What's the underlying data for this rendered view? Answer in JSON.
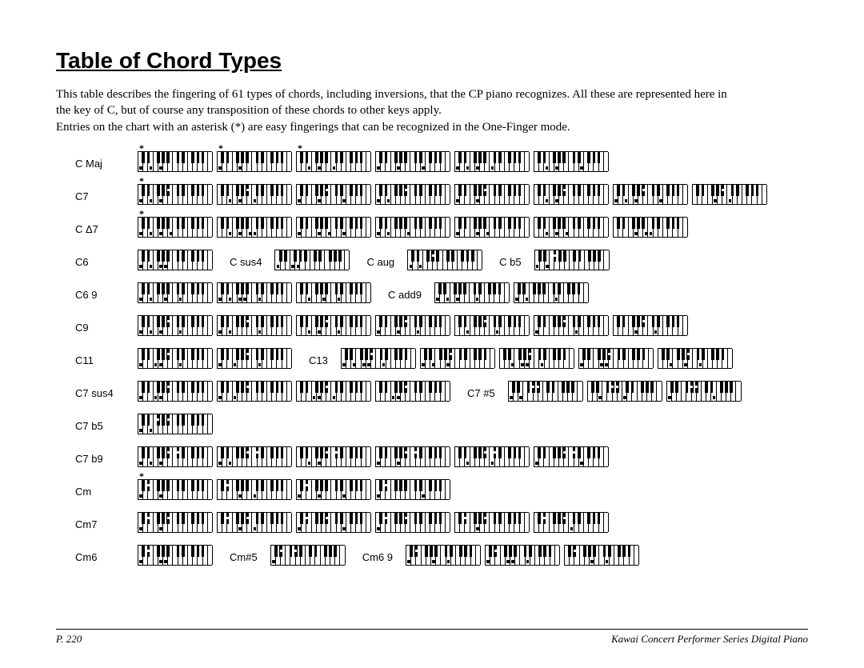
{
  "title": "Table of Chord Types",
  "intro_p1": "This table describes the fingering of 61 types of chords, including inversions, that the CP piano recognizes. All these are represented here in the key of C, but of course any transposition of these chords to other keys apply.",
  "intro_p2": "Entries on the chart with an asterisk (*) are easy fingerings that can be recognized in the One-Finger mode.",
  "footer_page": "P. 220",
  "footer_product": "Kawai Concert Performer Series Digital Piano",
  "keyboard": {
    "white_key_width": 6.2,
    "black_key_width": 3.8,
    "white_keys_per_octave": 7,
    "octaves": 2,
    "extra_white_key": true,
    "colors": {
      "white": "#ffffff",
      "black": "#000000",
      "border": "#000000"
    }
  },
  "rows": [
    {
      "items": [
        {
          "label": "C Maj",
          "first": true
        },
        {
          "kb": {
            "ast": true,
            "w": [
              0,
              2,
              4
            ]
          }
        },
        {
          "kb": {
            "ast": true,
            "w": [
              0,
              4
            ],
            "b": []
          }
        },
        {
          "kb": {
            "ast": true,
            "w": [
              2,
              4,
              7
            ]
          }
        },
        {
          "kb": {
            "w": [
              0,
              4,
              9
            ]
          }
        },
        {
          "kb": {
            "w": [
              0,
              2,
              4,
              7
            ]
          }
        },
        {
          "kb": {
            "w": [
              2,
              4,
              9
            ]
          }
        }
      ]
    },
    {
      "items": [
        {
          "label": "C7",
          "first": true
        },
        {
          "kb": {
            "ast": true,
            "w": [
              0,
              2,
              4
            ],
            "b": [
              10
            ]
          }
        },
        {
          "kb": {
            "w": [
              2,
              4,
              7
            ],
            "b": [
              10
            ]
          }
        },
        {
          "kb": {
            "w": [
              0,
              4,
              9
            ],
            "b": [
              10
            ]
          }
        },
        {
          "kb": {
            "w": [
              0,
              2
            ],
            "b": [
              10
            ]
          }
        },
        {
          "kb": {
            "w": [
              0,
              4
            ],
            "b": [
              10
            ]
          }
        },
        {
          "kb": {
            "w": [
              2,
              4
            ],
            "b": [
              10
            ]
          }
        },
        {
          "kb": {
            "w": [
              0,
              2,
              4,
              9
            ],
            "b": [
              10
            ]
          }
        },
        {
          "kb": {
            "w": [
              4,
              7
            ],
            "b": [
              10
            ]
          }
        }
      ]
    },
    {
      "items": [
        {
          "label": "C Δ7",
          "first": true
        },
        {
          "kb": {
            "ast": true,
            "w": [
              0,
              2,
              4,
              6
            ]
          }
        },
        {
          "kb": {
            "w": [
              2,
              4,
              6,
              7
            ]
          }
        },
        {
          "kb": {
            "w": [
              0,
              4,
              6,
              9
            ]
          }
        },
        {
          "kb": {
            "w": [
              0,
              2,
              6
            ]
          }
        },
        {
          "kb": {
            "w": [
              0,
              4,
              6
            ]
          }
        },
        {
          "kb": {
            "w": [
              2,
              4,
              6
            ]
          }
        },
        {
          "kb": {
            "w": [
              4,
              6,
              7
            ]
          }
        }
      ]
    },
    {
      "items": [
        {
          "label": "C6",
          "first": true
        },
        {
          "kb": {
            "w": [
              0,
              2,
              4,
              5
            ]
          }
        },
        {
          "label": "C sus4",
          "inline": true
        },
        {
          "kb": {
            "w": [
              0,
              3,
              4
            ]
          }
        },
        {
          "label": "C aug",
          "inline": true
        },
        {
          "kb": {
            "w": [
              0,
              2
            ],
            "b": [
              8
            ]
          }
        },
        {
          "label": "C b5",
          "inline": true
        },
        {
          "kb": {
            "w": [
              0,
              2
            ],
            "b": [
              6
            ]
          }
        }
      ]
    },
    {
      "items": [
        {
          "label": "C6 9",
          "first": true
        },
        {
          "kb": {
            "w": [
              0,
              2,
              5,
              8
            ]
          }
        },
        {
          "kb": {
            "w": [
              0,
              2,
              4,
              5,
              8
            ]
          }
        },
        {
          "kb": {
            "w": [
              2,
              5,
              8
            ]
          }
        },
        {
          "label": "C add9",
          "inline": true
        },
        {
          "kb": {
            "w": [
              0,
              2,
              4,
              8
            ]
          }
        },
        {
          "kb": {
            "w": [
              0,
              2,
              8
            ]
          }
        }
      ]
    },
    {
      "items": [
        {
          "label": "C9",
          "first": true
        },
        {
          "kb": {
            "w": [
              0,
              2,
              4,
              8
            ],
            "b": [
              10
            ]
          }
        },
        {
          "kb": {
            "w": [
              0,
              2,
              8
            ],
            "b": [
              10
            ]
          }
        },
        {
          "kb": {
            "w": [
              2,
              4,
              8
            ],
            "b": [
              10
            ]
          }
        },
        {
          "kb": {
            "w": [
              0,
              4,
              8
            ],
            "b": [
              10
            ]
          }
        },
        {
          "kb": {
            "w": [
              2,
              8
            ],
            "b": [
              10
            ]
          }
        },
        {
          "kb": {
            "w": [
              0,
              8
            ],
            "b": [
              10
            ]
          }
        },
        {
          "kb": {
            "w": [
              4,
              8
            ],
            "b": [
              10
            ]
          }
        }
      ]
    },
    {
      "items": [
        {
          "label": "C11",
          "first": true
        },
        {
          "kb": {
            "w": [
              0,
              3,
              4,
              8
            ],
            "b": [
              10
            ]
          }
        },
        {
          "kb": {
            "w": [
              0,
              3,
              8
            ],
            "b": [
              10
            ]
          }
        },
        {
          "label": "C13",
          "inline": true
        },
        {
          "kb": {
            "w": [
              0,
              2,
              4,
              5,
              8
            ],
            "b": [
              10
            ]
          }
        },
        {
          "kb": {
            "w": [
              0,
              2,
              5
            ],
            "b": [
              10
            ]
          }
        },
        {
          "kb": {
            "w": [
              2,
              4,
              5,
              8
            ],
            "b": [
              10
            ]
          }
        },
        {
          "kb": {
            "w": [
              0,
              4,
              5
            ],
            "b": [
              10
            ]
          }
        },
        {
          "kb": {
            "w": [
              2,
              5,
              8
            ],
            "b": [
              10
            ]
          }
        }
      ]
    },
    {
      "items": [
        {
          "label": "C7 sus4",
          "first": true
        },
        {
          "kb": {
            "w": [
              0,
              3,
              4
            ],
            "b": [
              10
            ]
          }
        },
        {
          "kb": {
            "w": [
              0,
              3
            ],
            "b": [
              10
            ]
          }
        },
        {
          "kb": {
            "w": [
              3,
              4,
              7
            ],
            "b": [
              10
            ]
          }
        },
        {
          "kb": {
            "w": [
              3,
              4
            ],
            "b": [
              10
            ]
          }
        },
        {
          "label": "C7 #5",
          "inline": true
        },
        {
          "kb": {
            "w": [
              0,
              2
            ],
            "b": [
              8,
              10
            ]
          }
        },
        {
          "kb": {
            "w": [
              2,
              7
            ],
            "b": [
              8,
              10
            ]
          }
        },
        {
          "kb": {
            "w": [
              0,
              9
            ],
            "b": [
              8,
              10
            ]
          }
        }
      ]
    },
    {
      "items": [
        {
          "label": "C7 b5",
          "first": true
        },
        {
          "kb": {
            "w": [
              0,
              2
            ],
            "b": [
              6,
              10
            ]
          }
        }
      ]
    },
    {
      "items": [
        {
          "label": "C7 b9",
          "first": true
        },
        {
          "kb": {
            "w": [
              0,
              2,
              4
            ],
            "b": [
              10,
              13
            ]
          }
        },
        {
          "kb": {
            "w": [
              0,
              2
            ],
            "b": [
              10,
              13
            ]
          }
        },
        {
          "kb": {
            "w": [
              2,
              4
            ],
            "b": [
              10,
              13
            ]
          }
        },
        {
          "kb": {
            "w": [
              0,
              4
            ],
            "b": [
              10,
              13
            ]
          }
        },
        {
          "kb": {
            "w": [
              2,
              7
            ],
            "b": [
              10,
              13
            ]
          }
        },
        {
          "kb": {
            "w": [
              0,
              9
            ],
            "b": [
              10,
              13
            ]
          }
        }
      ]
    },
    {
      "items": [
        {
          "label": "Cm",
          "first": true
        },
        {
          "kb": {
            "ast": true,
            "w": [
              0,
              4
            ],
            "b": [
              3
            ]
          }
        },
        {
          "kb": {
            "w": [
              4,
              7
            ],
            "b": [
              3
            ]
          }
        },
        {
          "kb": {
            "w": [
              0,
              4,
              9
            ],
            "b": [
              3
            ]
          }
        },
        {
          "kb": {
            "w": [
              0,
              9
            ],
            "b": [
              3
            ]
          }
        }
      ]
    },
    {
      "items": [
        {
          "label": "Cm7",
          "first": true
        },
        {
          "kb": {
            "w": [
              0,
              4
            ],
            "b": [
              3,
              10
            ]
          }
        },
        {
          "kb": {
            "w": [
              4,
              7
            ],
            "b": [
              3,
              10
            ]
          }
        },
        {
          "kb": {
            "w": [
              0,
              9
            ],
            "b": [
              3,
              10
            ]
          }
        },
        {
          "kb": {
            "w": [
              0
            ],
            "b": [
              3,
              10
            ]
          }
        },
        {
          "kb": {
            "w": [
              4
            ],
            "b": [
              3,
              10
            ]
          }
        },
        {
          "kb": {
            "w": [
              7
            ],
            "b": [
              3,
              10
            ]
          }
        }
      ]
    },
    {
      "items": [
        {
          "label": "Cm6",
          "first": true
        },
        {
          "kb": {
            "w": [
              0,
              4,
              5
            ],
            "b": [
              3
            ]
          }
        },
        {
          "label": "Cm#5",
          "inline": true
        },
        {
          "kb": {
            "w": [
              0
            ],
            "b": [
              3,
              8
            ]
          }
        },
        {
          "label": "Cm6 9",
          "inline": true
        },
        {
          "kb": {
            "w": [
              0,
              5,
              8
            ],
            "b": [
              3
            ]
          }
        },
        {
          "kb": {
            "w": [
              0,
              4,
              5,
              8
            ],
            "b": [
              3
            ]
          }
        },
        {
          "kb": {
            "w": [
              5,
              8
            ],
            "b": [
              3
            ]
          }
        }
      ]
    }
  ]
}
